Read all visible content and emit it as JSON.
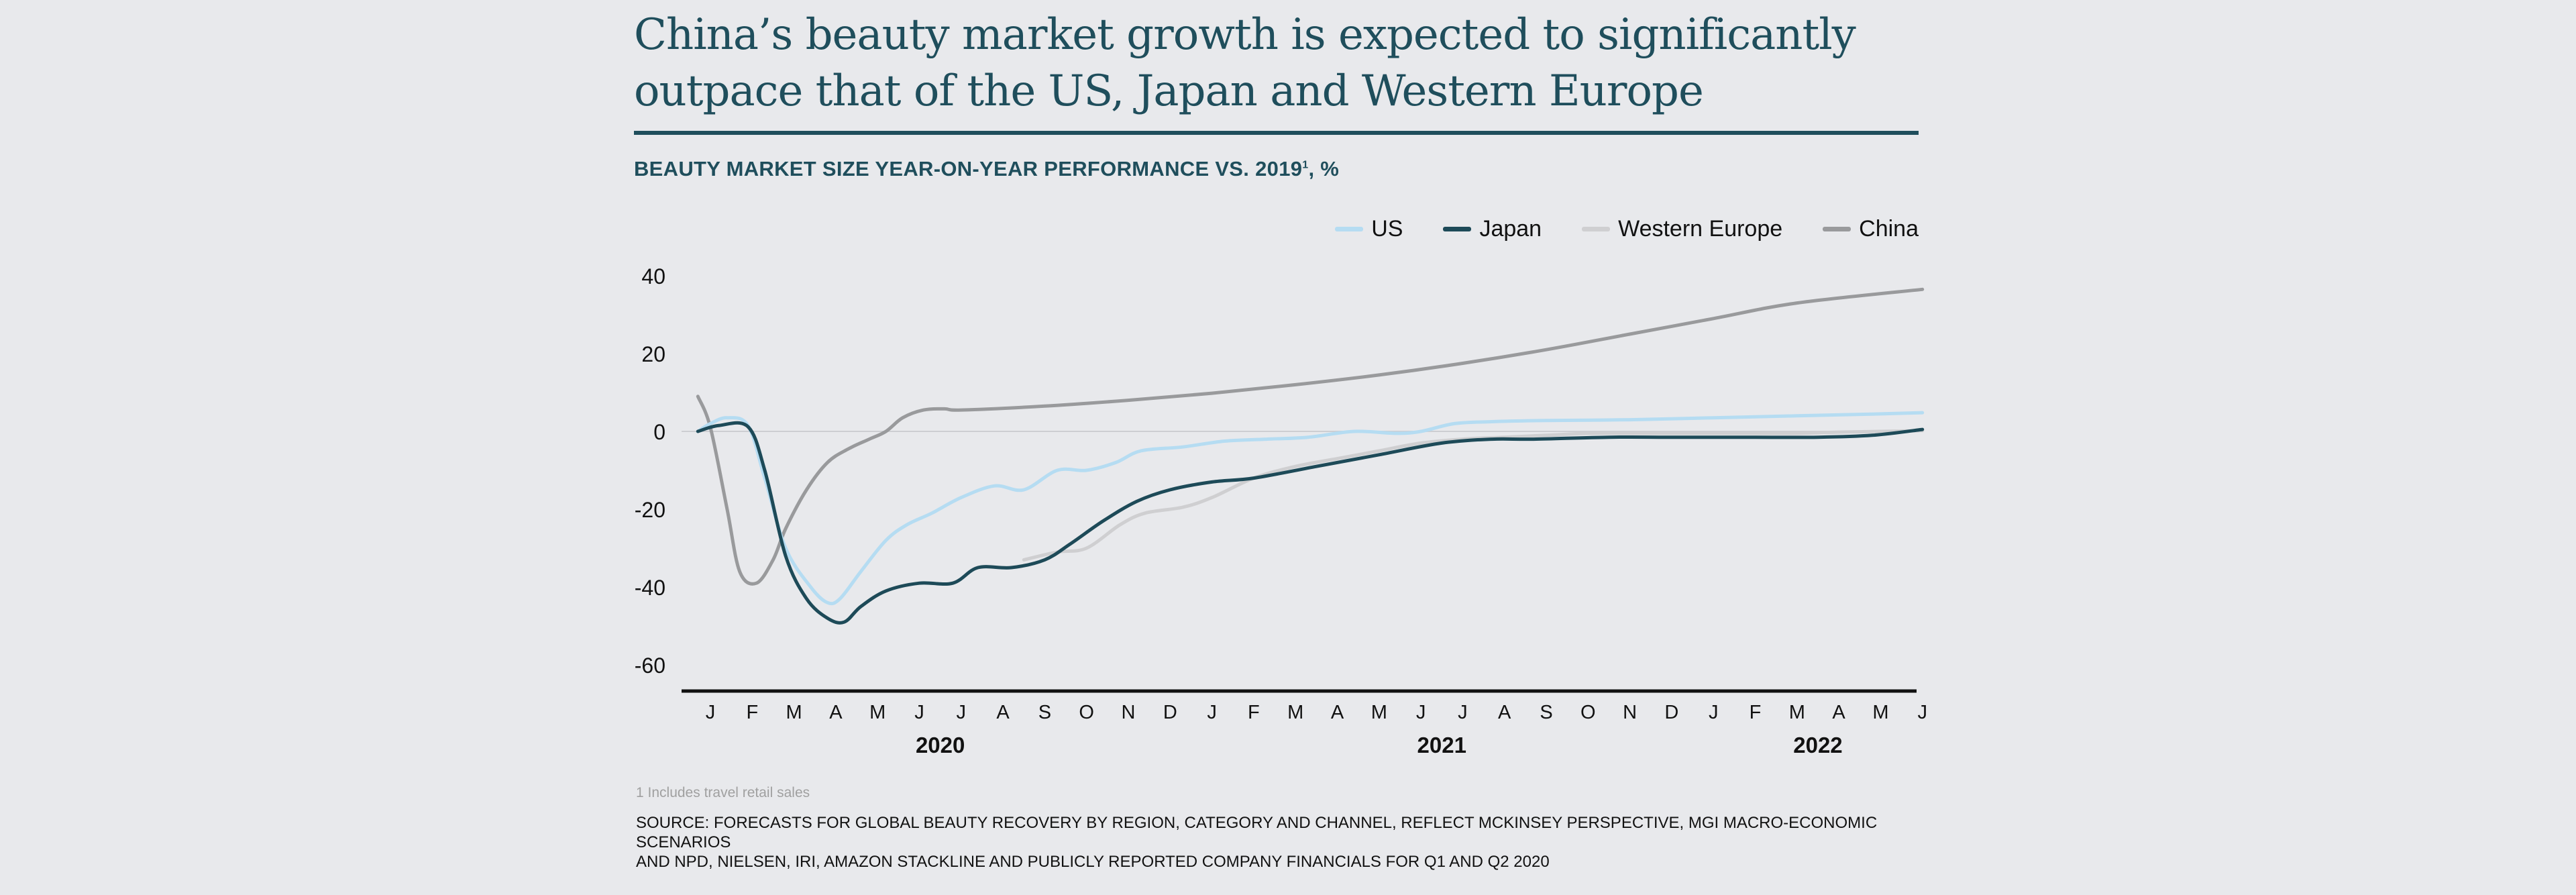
{
  "title_line1": "China’s beauty market growth is expected to significantly",
  "title_line2": "outpace that of the US, Japan and Western Europe",
  "subtitle": "BEAUTY MARKET SIZE YEAR-ON-YEAR PERFORMANCE VS. 2019",
  "subtitle_sup": "1",
  "subtitle_unit": ", %",
  "footnote": "1 Includes travel retail sales",
  "source_line1": "SOURCE: FORECASTS FOR GLOBAL BEAUTY RECOVERY BY REGION, CATEGORY AND CHANNEL, REFLECT MCKINSEY PERSPECTIVE, MGI MACRO-ECONOMIC SCENARIOS",
  "source_line2": "AND NPD, NIELSEN, IRI, AMAZON STACKLINE AND PUBLICLY REPORTED COMPANY FINANCIALS FOR Q1 AND Q2 2020",
  "chart_data": {
    "type": "line",
    "title": "BEAUTY MARKET SIZE YEAR-ON-YEAR PERFORMANCE VS. 2019¹, %",
    "ylim": [
      -65,
      45
    ],
    "yticks": [
      40,
      20,
      0,
      -20,
      -40,
      -60
    ],
    "month_labels": [
      "J",
      "F",
      "M",
      "A",
      "M",
      "J",
      "J",
      "A",
      "S",
      "O",
      "N",
      "D",
      "J",
      "F",
      "M",
      "A",
      "M",
      "J",
      "J",
      "A",
      "S",
      "O",
      "N",
      "D",
      "J",
      "F",
      "M",
      "A",
      "M",
      "J"
    ],
    "year_labels": [
      {
        "label": "2020",
        "month": 5.5
      },
      {
        "label": "2021",
        "month": 17.5
      },
      {
        "label": "2022",
        "month": 26.5
      }
    ],
    "legend_position": "top-right",
    "zero_line": true,
    "series": [
      {
        "name": "US",
        "color": "#b5dcf2",
        "points": [
          [
            -0.3,
            0
          ],
          [
            0,
            2
          ],
          [
            0.4,
            3.5
          ],
          [
            0.9,
            1.5
          ],
          [
            1.3,
            -12
          ],
          [
            1.8,
            -30
          ],
          [
            2.4,
            -40
          ],
          [
            2.8,
            -44
          ],
          [
            3.1,
            -43
          ],
          [
            3.6,
            -36
          ],
          [
            4.2,
            -28
          ],
          [
            4.7,
            -24
          ],
          [
            5.3,
            -21
          ],
          [
            6,
            -17
          ],
          [
            6.8,
            -14
          ],
          [
            7.5,
            -15
          ],
          [
            8.3,
            -10
          ],
          [
            9,
            -10
          ],
          [
            9.7,
            -8
          ],
          [
            10.3,
            -5
          ],
          [
            11.3,
            -4
          ],
          [
            12.3,
            -2.5
          ],
          [
            13.3,
            -2
          ],
          [
            14.3,
            -1.5
          ],
          [
            15.4,
            0
          ],
          [
            16.4,
            -0.5
          ],
          [
            17,
            0
          ],
          [
            17.8,
            2
          ],
          [
            18.7,
            2.5
          ],
          [
            20,
            2.8
          ],
          [
            22,
            3
          ],
          [
            24,
            3.5
          ],
          [
            26,
            4
          ],
          [
            28,
            4.5
          ],
          [
            29,
            4.8
          ]
        ]
      },
      {
        "name": "Japan",
        "color": "#1d4a58",
        "points": [
          [
            -0.3,
            0
          ],
          [
            0.2,
            1.5
          ],
          [
            0.9,
            1.2
          ],
          [
            1.3,
            -10
          ],
          [
            1.8,
            -32
          ],
          [
            2.3,
            -43
          ],
          [
            2.8,
            -48
          ],
          [
            3.2,
            -49
          ],
          [
            3.6,
            -45
          ],
          [
            4.2,
            -41
          ],
          [
            5,
            -39
          ],
          [
            5.8,
            -39
          ],
          [
            6.4,
            -35
          ],
          [
            7.2,
            -35
          ],
          [
            8,
            -33
          ],
          [
            8.6,
            -29
          ],
          [
            9.4,
            -23
          ],
          [
            10.2,
            -18
          ],
          [
            11,
            -15
          ],
          [
            12,
            -13
          ],
          [
            13,
            -12
          ],
          [
            14.5,
            -9
          ],
          [
            16,
            -6
          ],
          [
            17.5,
            -3
          ],
          [
            18.7,
            -2
          ],
          [
            19.7,
            -2
          ],
          [
            21.5,
            -1.5
          ],
          [
            23,
            -1.5
          ],
          [
            25,
            -1.5
          ],
          [
            26.5,
            -1.5
          ],
          [
            27.8,
            -1
          ],
          [
            29,
            0.5
          ]
        ]
      },
      {
        "name": "Western Europe",
        "color": "#cfcfd1",
        "points": [
          [
            7.5,
            -33
          ],
          [
            8.3,
            -31
          ],
          [
            9,
            -30
          ],
          [
            9.8,
            -24
          ],
          [
            10.4,
            -21
          ],
          [
            11.3,
            -19.5
          ],
          [
            12,
            -17
          ],
          [
            13,
            -12
          ],
          [
            14,
            -9
          ],
          [
            15,
            -7
          ],
          [
            16,
            -5
          ],
          [
            17,
            -3
          ],
          [
            18,
            -2
          ],
          [
            19,
            -1.5
          ],
          [
            20,
            -1
          ],
          [
            21,
            -0.5
          ],
          [
            22,
            -0.5
          ],
          [
            23,
            -0.5
          ],
          [
            24,
            -0.5
          ],
          [
            25,
            -0.5
          ],
          [
            26,
            -0.5
          ],
          [
            27,
            -0.2
          ],
          [
            28,
            0
          ],
          [
            29,
            0.2
          ]
        ]
      },
      {
        "name": "China",
        "color": "#999a9c",
        "points": [
          [
            -0.3,
            9
          ],
          [
            0,
            1
          ],
          [
            0.4,
            -20
          ],
          [
            0.7,
            -36
          ],
          [
            1.1,
            -39
          ],
          [
            1.5,
            -33
          ],
          [
            1.8,
            -25
          ],
          [
            2.3,
            -15
          ],
          [
            2.8,
            -8
          ],
          [
            3.3,
            -4.5
          ],
          [
            3.8,
            -2
          ],
          [
            4.2,
            0
          ],
          [
            4.6,
            3.5
          ],
          [
            5.1,
            5.5
          ],
          [
            5.6,
            5.8
          ],
          [
            6,
            5.5
          ],
          [
            8,
            6.5
          ],
          [
            10,
            8
          ],
          [
            12,
            9.8
          ],
          [
            14,
            12
          ],
          [
            16,
            14.5
          ],
          [
            18,
            17.5
          ],
          [
            20,
            21
          ],
          [
            22,
            25
          ],
          [
            24,
            29
          ],
          [
            26,
            33
          ],
          [
            29,
            36.5
          ]
        ]
      }
    ]
  }
}
